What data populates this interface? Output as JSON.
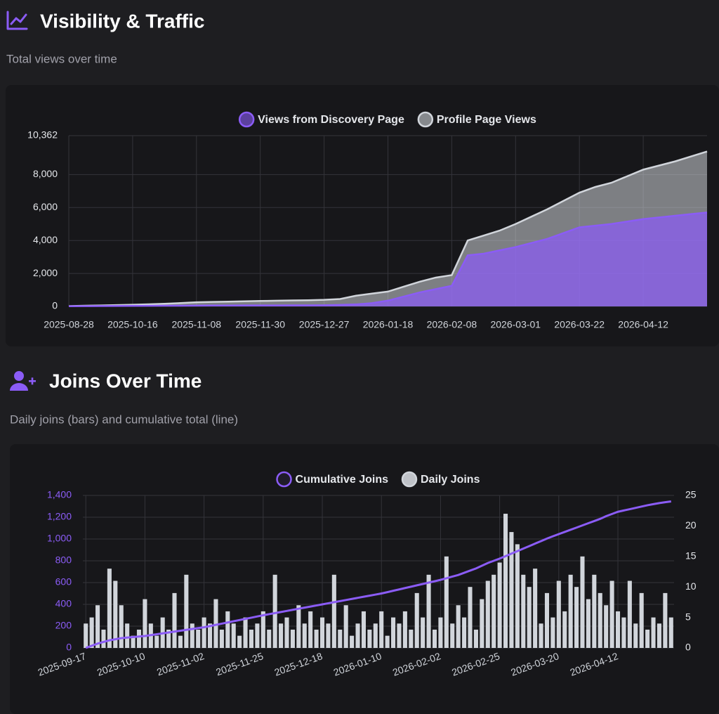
{
  "sections": [
    {
      "title": "Visibility & Traffic",
      "subtitle": "Total views over time"
    },
    {
      "title": "Joins Over Time",
      "subtitle": "Daily joins (bars) and cumulative total (line)"
    }
  ],
  "chart_data": [
    {
      "type": "area",
      "x": [
        "2025-08-28",
        null,
        null,
        null,
        "2025-10-16",
        null,
        null,
        null,
        "2025-11-08",
        null,
        null,
        null,
        "2025-11-30",
        null,
        null,
        null,
        "2025-12-27",
        null,
        null,
        null,
        "2026-01-18",
        null,
        null,
        null,
        "2026-02-08",
        null,
        null,
        null,
        "2026-03-01",
        null,
        null,
        null,
        "2026-03-22",
        null,
        null,
        null,
        "2026-04-12",
        null,
        null,
        null,
        null
      ],
      "series": [
        {
          "name": "Views from Discovery Page",
          "color": "#8b5cf6",
          "values": [
            10,
            15,
            20,
            25,
            30,
            35,
            40,
            45,
            50,
            52,
            54,
            56,
            58,
            60,
            62,
            64,
            70,
            90,
            120,
            200,
            350,
            600,
            850,
            1050,
            1250,
            3100,
            3200,
            3400,
            3600,
            3850,
            4100,
            4450,
            4800,
            4900,
            5000,
            5150,
            5300,
            5400,
            5500,
            5600,
            5700
          ]
        },
        {
          "name": "Profile Page Views",
          "color": "#d1d5db",
          "values": [
            20,
            40,
            60,
            80,
            100,
            130,
            160,
            200,
            250,
            270,
            290,
            310,
            330,
            345,
            360,
            375,
            400,
            450,
            650,
            780,
            900,
            1200,
            1500,
            1750,
            1900,
            4000,
            4300,
            4600,
            5000,
            5450,
            5900,
            6400,
            6900,
            7250,
            7500,
            7900,
            8300,
            8550,
            8800,
            9100,
            9400
          ]
        }
      ],
      "ylim": [
        0,
        10362
      ],
      "yticks": [
        0,
        {
          "value": 2000,
          "label": "2,000"
        },
        {
          "value": 4000,
          "label": "4,000"
        },
        {
          "value": 6000,
          "label": "6,000"
        },
        {
          "value": 8000,
          "label": "8,000"
        },
        {
          "value": 10362,
          "label": "10,362"
        }
      ],
      "grid": true
    },
    {
      "type": "bar_line",
      "x": [
        "2025-09-17",
        null,
        null,
        null,
        null,
        null,
        null,
        null,
        null,
        null,
        "2025-10-10",
        null,
        null,
        null,
        null,
        null,
        null,
        null,
        null,
        null,
        "2025-11-02",
        null,
        null,
        null,
        null,
        null,
        null,
        null,
        null,
        null,
        "2025-11-25",
        null,
        null,
        null,
        null,
        null,
        null,
        null,
        null,
        null,
        "2025-12-18",
        null,
        null,
        null,
        null,
        null,
        null,
        null,
        null,
        null,
        "2026-01-10",
        null,
        null,
        null,
        null,
        null,
        null,
        null,
        null,
        null,
        "2026-02-02",
        null,
        null,
        null,
        null,
        null,
        null,
        null,
        null,
        null,
        "2026-02-25",
        null,
        null,
        null,
        null,
        null,
        null,
        null,
        null,
        null,
        "2026-03-20",
        null,
        null,
        null,
        null,
        null,
        null,
        null,
        null,
        null,
        "2026-04-12",
        null,
        null,
        null,
        null,
        null,
        null,
        null,
        null,
        null
      ],
      "series": [
        {
          "name": "Cumulative Joins",
          "type": "line",
          "color": "#8b5cf6",
          "values": [
            0,
            20,
            40,
            55,
            70,
            80,
            90,
            95,
            100,
            105,
            110,
            118,
            126,
            134,
            142,
            150,
            158,
            166,
            174,
            182,
            190,
            201,
            212,
            223,
            234,
            245,
            256,
            267,
            278,
            289,
            300,
            310,
            320,
            330,
            340,
            350,
            360,
            370,
            380,
            390,
            400,
            410,
            420,
            430,
            440,
            450,
            460,
            470,
            480,
            490,
            500,
            512,
            525,
            537,
            550,
            562,
            575,
            587,
            600,
            612,
            625,
            640,
            655,
            670,
            690,
            710,
            730,
            755,
            780,
            800,
            820,
            843,
            866,
            889,
            912,
            935,
            958,
            981,
            1004,
            1025,
            1045,
            1065,
            1085,
            1105,
            1125,
            1145,
            1165,
            1185,
            1210,
            1230,
            1250,
            1262,
            1274,
            1286,
            1298,
            1310,
            1320,
            1330,
            1338,
            1345
          ]
        },
        {
          "name": "Daily Joins",
          "type": "bar",
          "axis": "y2",
          "color": "#d1d5db",
          "values": [
            4,
            5,
            7,
            3,
            13,
            11,
            7,
            4,
            2,
            3,
            8,
            4,
            2,
            5,
            3,
            9,
            2,
            12,
            4,
            3,
            5,
            4,
            8,
            3,
            6,
            4,
            2,
            5,
            3,
            4,
            6,
            3,
            12,
            4,
            5,
            3,
            7,
            4,
            6,
            3,
            5,
            4,
            12,
            3,
            7,
            2,
            4,
            6,
            3,
            4,
            6,
            2,
            5,
            4,
            6,
            3,
            9,
            5,
            12,
            3,
            5,
            15,
            4,
            7,
            5,
            10,
            3,
            8,
            11,
            12,
            14,
            22,
            19,
            17,
            12,
            10,
            13,
            4,
            9,
            5,
            11,
            6,
            12,
            10,
            15,
            8,
            12,
            9,
            7,
            11,
            6,
            5,
            11,
            4,
            9,
            3,
            5,
            4,
            9,
            5
          ]
        }
      ],
      "ylim": [
        0,
        1400
      ],
      "yticks": [
        0,
        200,
        400,
        600,
        800,
        {
          "value": 1000,
          "label": "1,000"
        },
        {
          "value": 1200,
          "label": "1,200"
        },
        {
          "value": 1400,
          "label": "1,400"
        }
      ],
      "y2lim": [
        0,
        25
      ],
      "y2ticks": [
        0,
        5,
        10,
        15,
        20,
        25
      ],
      "grid": true
    }
  ]
}
